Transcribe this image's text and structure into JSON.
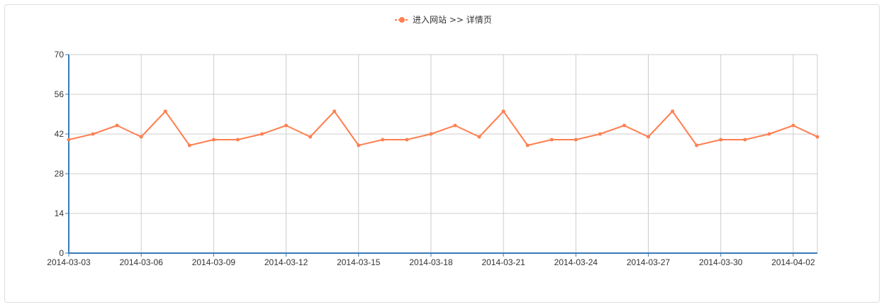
{
  "chart_data": {
    "type": "line",
    "legend_position": "top-center",
    "grid": true,
    "ylim": [
      0,
      70
    ],
    "yticks": [
      0,
      14,
      28,
      42,
      56,
      70
    ],
    "xtick_labels": [
      "2014-03-03",
      "2014-03-06",
      "2014-03-09",
      "2014-03-12",
      "2014-03-15",
      "2014-03-18",
      "2014-03-21",
      "2014-03-24",
      "2014-03-27",
      "2014-03-30",
      "2014-04-02"
    ],
    "x": [
      "2014-03-03",
      "2014-03-04",
      "2014-03-05",
      "2014-03-06",
      "2014-03-07",
      "2014-03-08",
      "2014-03-09",
      "2014-03-10",
      "2014-03-11",
      "2014-03-12",
      "2014-03-13",
      "2014-03-14",
      "2014-03-15",
      "2014-03-16",
      "2014-03-17",
      "2014-03-18",
      "2014-03-19",
      "2014-03-20",
      "2014-03-21",
      "2014-03-22",
      "2014-03-23",
      "2014-03-24",
      "2014-03-25",
      "2014-03-26",
      "2014-03-27",
      "2014-03-28",
      "2014-03-29",
      "2014-03-30",
      "2014-03-31",
      "2014-04-01",
      "2014-04-02",
      "2014-04-03"
    ],
    "series": [
      {
        "name": "进入网站 >> 详情页",
        "color": "#ff7f50",
        "values": [
          40,
          42,
          45,
          41,
          50,
          38,
          40,
          40,
          42,
          45,
          41,
          50,
          38,
          40,
          40,
          42,
          45,
          41,
          50,
          38,
          40,
          40,
          42,
          45,
          41,
          50,
          38,
          40,
          40,
          42,
          45,
          41
        ]
      }
    ]
  }
}
